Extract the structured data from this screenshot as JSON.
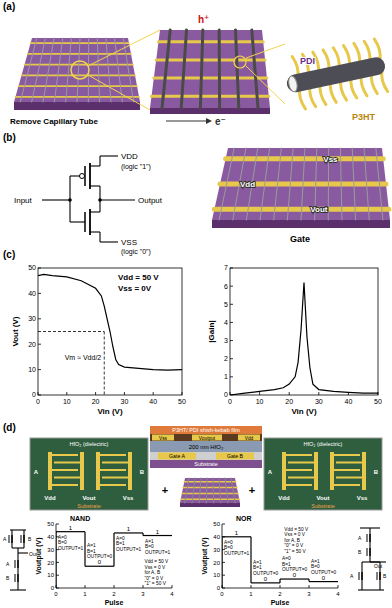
{
  "panel_labels": [
    "(a)",
    "(b)",
    "(c)",
    "(d)"
  ],
  "diagram": {
    "a": {
      "caption": "Remove Capillary Tube",
      "hole": "h⁺",
      "electron": "e⁻",
      "pdi": "PDI",
      "p3ht": "P3HT"
    },
    "b": {
      "vdd": "VDD",
      "logic1": "(logic \"1\")",
      "input": "Input",
      "output": "Output",
      "vss": "VSS",
      "logic0": "(logic \"0\")",
      "device_labels": [
        "Vss",
        "Vdd",
        "Vout"
      ],
      "gate": "Gate"
    },
    "d": {
      "film": "P3HT/ PDI shish-kebab film",
      "electrodes": [
        "Vss",
        "Voutput",
        "Vdd"
      ],
      "dielectric": "200 nm HfO₂",
      "gates": [
        "Gate A",
        "Gate B"
      ],
      "substrate": "Substrate",
      "hfo2": "HfO₂ (dielectric)",
      "left_pins": [
        "A",
        "B",
        "Vdd",
        "Vout",
        "Vss"
      ],
      "right_pins": [
        "A",
        "B",
        "Vdd",
        "Vout",
        "Vss"
      ],
      "plus": "+",
      "nand_pins": [
        "A",
        "B",
        "Out"
      ],
      "nor_pins": [
        "A",
        "B",
        "Out"
      ]
    }
  },
  "chart_data": [
    {
      "type": "line",
      "x_label": "Vin (V)",
      "y_label": "Vout (V)",
      "color": "#000000",
      "xlim": [
        0,
        50
      ],
      "ylim": [
        0,
        50
      ],
      "xticks": [
        0,
        10,
        20,
        30,
        40,
        50
      ],
      "yticks": [
        0,
        10,
        20,
        30,
        40,
        50
      ],
      "x": [
        0,
        2,
        5,
        10,
        15,
        20,
        22,
        23,
        24,
        25,
        26,
        27,
        28,
        30,
        35,
        40,
        45,
        50
      ],
      "values": [
        47,
        47.5,
        47,
        46.5,
        45,
        42,
        39,
        35,
        30,
        25,
        19,
        14,
        12,
        11,
        10.5,
        10,
        9.8,
        10
      ],
      "guide_x": 23,
      "guide_y": 25,
      "annotations": [
        "Vdd = 50 V",
        "Vss = 0V",
        "Vm ≈ Vdd/2"
      ]
    },
    {
      "type": "line",
      "x_label": "Vin (V)",
      "y_label": "|Gain|",
      "color": "#000000",
      "xlim": [
        0,
        50
      ],
      "ylim": [
        0,
        7
      ],
      "xticks": [
        0,
        10,
        20,
        30,
        40,
        50
      ],
      "yticks": [
        0,
        1,
        2,
        3,
        4,
        5,
        6,
        7
      ],
      "x": [
        0,
        5,
        10,
        15,
        18,
        20,
        22,
        23,
        24,
        25,
        26,
        27,
        28,
        30,
        35,
        40,
        45,
        50
      ],
      "values": [
        0,
        0.1,
        0.2,
        0.3,
        0.4,
        0.6,
        1.0,
        1.8,
        3.6,
        6.2,
        3.2,
        1.5,
        0.6,
        0.3,
        0.2,
        0.15,
        0.1,
        0.1
      ]
    },
    {
      "type": "step",
      "title": "NAND",
      "x_label": "Pulse",
      "y_label": "Voutput (V)",
      "color": "#000000",
      "xlim": [
        0,
        4
      ],
      "ylim": [
        0,
        50
      ],
      "xticks": [
        0,
        1,
        2,
        3,
        4
      ],
      "yticks": [
        0,
        10,
        20,
        30,
        40,
        50
      ],
      "bins": [
        0,
        1,
        2,
        3,
        4
      ],
      "values": [
        44,
        17,
        43,
        41
      ],
      "segment_labels": [
        "1",
        "0",
        "1",
        "1"
      ],
      "states": [
        [
          "A=0",
          "B=0",
          "OUTPUT=1"
        ],
        [
          "A=1",
          "B=1",
          "OUTPUT=0"
        ],
        [
          "A=0",
          "B=1",
          "OUTPUT=1"
        ],
        [
          "A=1",
          "B=0",
          "OUTPUT=1"
        ]
      ],
      "notes": [
        "Vdd = 50 V",
        "Vss = 0 V",
        "for A, B",
        "\"0\" = 0 V",
        "\"1\" = 50 V"
      ]
    },
    {
      "type": "step",
      "title": "NOR",
      "x_label": "Pulse",
      "y_label": "Voutput (V)",
      "color": "#000000",
      "xlim": [
        0,
        4
      ],
      "ylim": [
        0,
        50
      ],
      "xticks": [
        0,
        1,
        2,
        3,
        4
      ],
      "yticks": [
        0,
        10,
        20,
        30,
        40,
        50
      ],
      "bins": [
        0,
        1,
        2,
        3,
        4
      ],
      "values": [
        40,
        4,
        7,
        5
      ],
      "segment_labels": [
        "1",
        "0",
        "0",
        "0"
      ],
      "states": [
        [
          "A=0",
          "B=0",
          "OUTPUT=1"
        ],
        [
          "A=1",
          "B=1",
          "OUTPUT=0"
        ],
        [
          "A=0",
          "B=1",
          "OUTPUT=0"
        ],
        [
          "A=1",
          "B=0",
          "OUTPUT=0"
        ]
      ],
      "notes": [
        "Vdd = 50 V",
        "Vss = 0 V",
        "for A, B",
        "\"0\" = 0 V",
        "\"1\" = 50 V"
      ]
    }
  ]
}
